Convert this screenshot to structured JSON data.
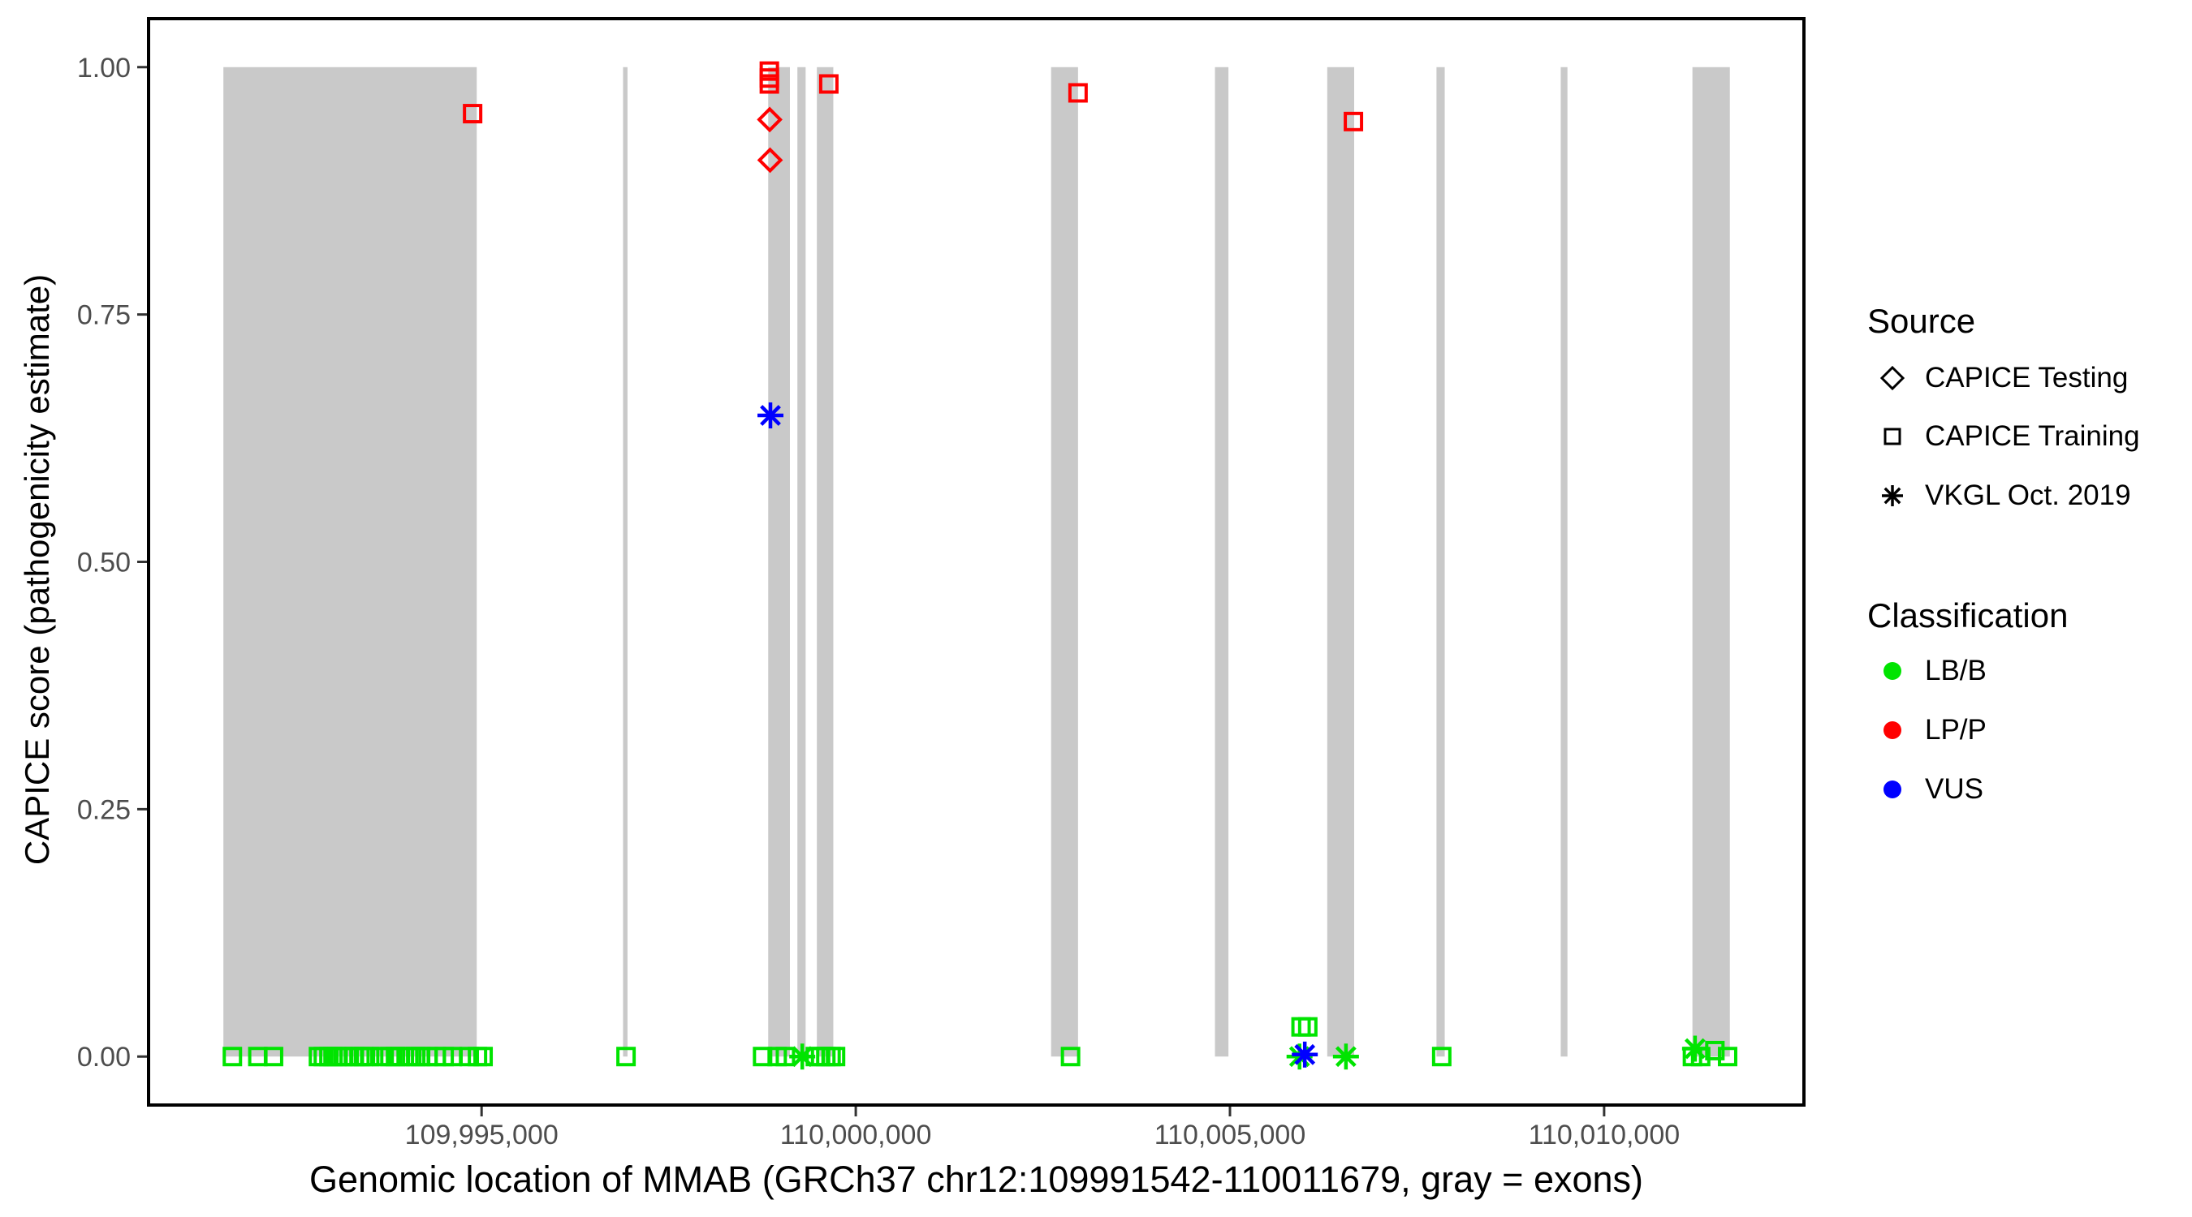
{
  "figure": {
    "background": "#ffffff"
  },
  "chart_data": {
    "type": "scatter",
    "title": "",
    "xlabel": "Genomic location of MMAB (GRCh37 chr12:109991542-110011679, gray = exons)",
    "ylabel": "CAPICE score (pathogenicity estimate)",
    "xlim": [
      109990550,
      110012670
    ],
    "ylim": [
      -0.049,
      1.049
    ],
    "grid": "off",
    "legend_position": "right",
    "x_ticks": [
      {
        "v": 109995000,
        "label": "109,995,000"
      },
      {
        "v": 110000000,
        "label": "110,000,000"
      },
      {
        "v": 110005000,
        "label": "110,005,000"
      },
      {
        "v": 110010000,
        "label": "110,010,000"
      }
    ],
    "y_ticks": [
      {
        "v": 0.0,
        "label": "0.00"
      },
      {
        "v": 0.25,
        "label": "0.25"
      },
      {
        "v": 0.5,
        "label": "0.50"
      },
      {
        "v": 0.75,
        "label": "0.75"
      },
      {
        "v": 1.0,
        "label": "1.00"
      }
    ],
    "exon_color": "#C9C9C9",
    "exon_note": "gray vertical bands are exons, drawn from score 0 to 1",
    "exons": [
      [
        109991550,
        109994935
      ],
      [
        109996890,
        109996950
      ],
      [
        109998830,
        109999120
      ],
      [
        109999220,
        109999330
      ],
      [
        109999480,
        109999700
      ],
      [
        110002610,
        110002970
      ],
      [
        110004800,
        110004980
      ],
      [
        110006300,
        110006660
      ],
      [
        110007760,
        110007870
      ],
      [
        110009420,
        110009510
      ],
      [
        110011180,
        110011680
      ]
    ],
    "classification_colors": {
      "LB/B": "#00E400",
      "LP/P": "#FF0000",
      "VUS": "#0000FF"
    },
    "shape_sources": {
      "diamond": "CAPICE Testing",
      "square": "CAPICE Training",
      "asterisk": "VKGL Oct. 2019"
    },
    "points": [
      {
        "x": 109991670,
        "y": 0,
        "shape": "square",
        "cls": "LB/B"
      },
      {
        "x": 109992010,
        "y": 0,
        "shape": "square",
        "cls": "LB/B"
      },
      {
        "x": 109992220,
        "y": 0,
        "shape": "square",
        "cls": "LB/B"
      },
      {
        "x": 109992820,
        "y": 0,
        "shape": "square",
        "cls": "LB/B"
      },
      {
        "x": 109992885,
        "y": 0,
        "shape": "square",
        "cls": "LB/B"
      },
      {
        "x": 109992960,
        "y": 0,
        "shape": "square",
        "cls": "LB/B"
      },
      {
        "x": 109993015,
        "y": 0,
        "shape": "square",
        "cls": "LB/B"
      },
      {
        "x": 109993070,
        "y": 0,
        "shape": "square",
        "cls": "LB/B"
      },
      {
        "x": 109993145,
        "y": 0,
        "shape": "square",
        "cls": "LB/B"
      },
      {
        "x": 109993230,
        "y": 0,
        "shape": "square",
        "cls": "LB/B"
      },
      {
        "x": 109993300,
        "y": 0,
        "shape": "square",
        "cls": "LB/B"
      },
      {
        "x": 109993375,
        "y": 0,
        "shape": "square",
        "cls": "LB/B"
      },
      {
        "x": 109993425,
        "y": 0,
        "shape": "square",
        "cls": "LB/B"
      },
      {
        "x": 109993505,
        "y": 0,
        "shape": "square",
        "cls": "LB/B"
      },
      {
        "x": 109993665,
        "y": 0,
        "shape": "square",
        "cls": "LB/B"
      },
      {
        "x": 109993775,
        "y": 0,
        "shape": "square",
        "cls": "LB/B"
      },
      {
        "x": 109993850,
        "y": 0,
        "shape": "square",
        "cls": "LB/B"
      },
      {
        "x": 109993915,
        "y": 0,
        "shape": "square",
        "cls": "LB/B"
      },
      {
        "x": 109994025,
        "y": 0,
        "shape": "square",
        "cls": "LB/B"
      },
      {
        "x": 109994120,
        "y": 0,
        "shape": "square",
        "cls": "LB/B"
      },
      {
        "x": 109994185,
        "y": 0,
        "shape": "square",
        "cls": "LB/B"
      },
      {
        "x": 109994285,
        "y": 0,
        "shape": "square",
        "cls": "LB/B"
      },
      {
        "x": 109994395,
        "y": 0,
        "shape": "square",
        "cls": "LB/B"
      },
      {
        "x": 109994500,
        "y": 0,
        "shape": "square",
        "cls": "LB/B"
      },
      {
        "x": 109994610,
        "y": 0,
        "shape": "square",
        "cls": "LB/B"
      },
      {
        "x": 109994835,
        "y": 0,
        "shape": "square",
        "cls": "LB/B"
      },
      {
        "x": 109994945,
        "y": 0,
        "shape": "square",
        "cls": "LB/B"
      },
      {
        "x": 109995020,
        "y": 0,
        "shape": "square",
        "cls": "LB/B"
      },
      {
        "x": 109996930,
        "y": 0,
        "shape": "square",
        "cls": "LB/B"
      },
      {
        "x": 109998755,
        "y": 0,
        "shape": "square",
        "cls": "LB/B"
      },
      {
        "x": 109998950,
        "y": 0,
        "shape": "square",
        "cls": "LB/B"
      },
      {
        "x": 109999060,
        "y": 0,
        "shape": "square",
        "cls": "LB/B"
      },
      {
        "x": 109999460,
        "y": 0,
        "shape": "square",
        "cls": "LB/B"
      },
      {
        "x": 109999530,
        "y": 0,
        "shape": "square",
        "cls": "LB/B"
      },
      {
        "x": 109999600,
        "y": 0,
        "shape": "square",
        "cls": "LB/B"
      },
      {
        "x": 109999670,
        "y": 0,
        "shape": "square",
        "cls": "LB/B"
      },
      {
        "x": 109999730,
        "y": 0,
        "shape": "square",
        "cls": "LB/B"
      },
      {
        "x": 110002870,
        "y": 0,
        "shape": "square",
        "cls": "LB/B"
      },
      {
        "x": 110005950,
        "y": 0.03,
        "shape": "square",
        "cls": "LB/B"
      },
      {
        "x": 110006040,
        "y": 0.03,
        "shape": "square",
        "cls": "LB/B"
      },
      {
        "x": 110007830,
        "y": 0,
        "shape": "square",
        "cls": "LB/B"
      },
      {
        "x": 110011180,
        "y": 0,
        "shape": "square",
        "cls": "LB/B"
      },
      {
        "x": 110011290,
        "y": 0,
        "shape": "square",
        "cls": "LB/B"
      },
      {
        "x": 110011480,
        "y": 0.006,
        "shape": "square",
        "cls": "LB/B"
      },
      {
        "x": 110011650,
        "y": 0,
        "shape": "square",
        "cls": "LB/B"
      },
      {
        "x": 109999285,
        "y": 0,
        "shape": "asterisk",
        "cls": "LB/B"
      },
      {
        "x": 110005930,
        "y": 0,
        "shape": "asterisk",
        "cls": "LB/B"
      },
      {
        "x": 110006550,
        "y": 0,
        "shape": "asterisk",
        "cls": "LB/B"
      },
      {
        "x": 110011215,
        "y": 0.008,
        "shape": "asterisk",
        "cls": "LB/B"
      },
      {
        "x": 109994880,
        "y": 0.953,
        "shape": "square",
        "cls": "LP/P"
      },
      {
        "x": 109998845,
        "y": 0.996,
        "shape": "square",
        "cls": "LP/P"
      },
      {
        "x": 109998845,
        "y": 0.989,
        "shape": "square",
        "cls": "LP/P"
      },
      {
        "x": 109998845,
        "y": 0.983,
        "shape": "square",
        "cls": "LP/P"
      },
      {
        "x": 109999640,
        "y": 0.983,
        "shape": "square",
        "cls": "LP/P"
      },
      {
        "x": 110002970,
        "y": 0.974,
        "shape": "square",
        "cls": "LP/P"
      },
      {
        "x": 110006650,
        "y": 0.945,
        "shape": "square",
        "cls": "LP/P"
      },
      {
        "x": 109998850,
        "y": 0.947,
        "shape": "diamond",
        "cls": "LP/P"
      },
      {
        "x": 109998855,
        "y": 0.906,
        "shape": "diamond",
        "cls": "LP/P"
      },
      {
        "x": 109998860,
        "y": 0.648,
        "shape": "asterisk",
        "cls": "VUS"
      },
      {
        "x": 110006000,
        "y": 0.002,
        "shape": "asterisk",
        "cls": "VUS"
      }
    ]
  },
  "legend": {
    "source": {
      "title": "Source",
      "items": [
        {
          "label": "CAPICE Testing",
          "shape": "diamond"
        },
        {
          "label": "CAPICE Training",
          "shape": "square"
        },
        {
          "label": "VKGL Oct. 2019",
          "shape": "asterisk"
        }
      ]
    },
    "classification": {
      "title": "Classification",
      "items": [
        {
          "label": "LB/B",
          "color": "#00E400"
        },
        {
          "label": "LP/P",
          "color": "#FF0000"
        },
        {
          "label": "VUS",
          "color": "#0000FF"
        }
      ]
    }
  }
}
